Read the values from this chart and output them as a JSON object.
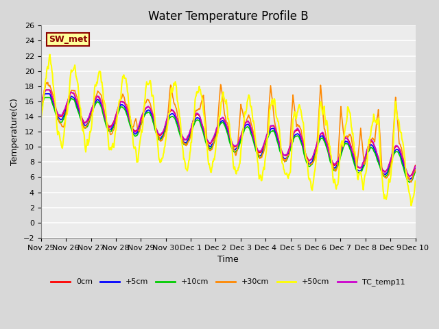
{
  "title": "Water Temperature Profile B",
  "xlabel": "Time",
  "ylabel": "Temperature(C)",
  "ylim": [
    -2,
    26
  ],
  "yticks": [
    -2,
    0,
    2,
    4,
    6,
    8,
    10,
    12,
    14,
    16,
    18,
    20,
    22,
    24,
    26
  ],
  "bg_color": "#d8d8d8",
  "plot_bg_color": "#ececec",
  "annotation_text": "SW_met",
  "annotation_color": "#8b0000",
  "annotation_bg": "#ffff99",
  "annotation_border": "#8b0000",
  "series_names": [
    "0cm",
    "+5cm",
    "+10cm",
    "+30cm",
    "+50cm",
    "TC_temp11"
  ],
  "series_colors": [
    "#ff0000",
    "#0000ff",
    "#00cc00",
    "#ff8800",
    "#ffff00",
    "#cc00cc"
  ],
  "series_lw": [
    1.2,
    1.2,
    1.2,
    1.2,
    1.5,
    1.2
  ],
  "xtick_labels": [
    "Nov 25",
    "Nov 26",
    "Nov 27",
    "Nov 28",
    "Nov 29",
    "Nov 30",
    "Dec 1",
    "Dec 2",
    "Dec 3",
    "Dec 4",
    "Dec 5",
    "Dec 6",
    "Dec 7",
    "Dec 8",
    "Dec 9",
    "Dec 10"
  ],
  "n_points": 720,
  "days": 15
}
